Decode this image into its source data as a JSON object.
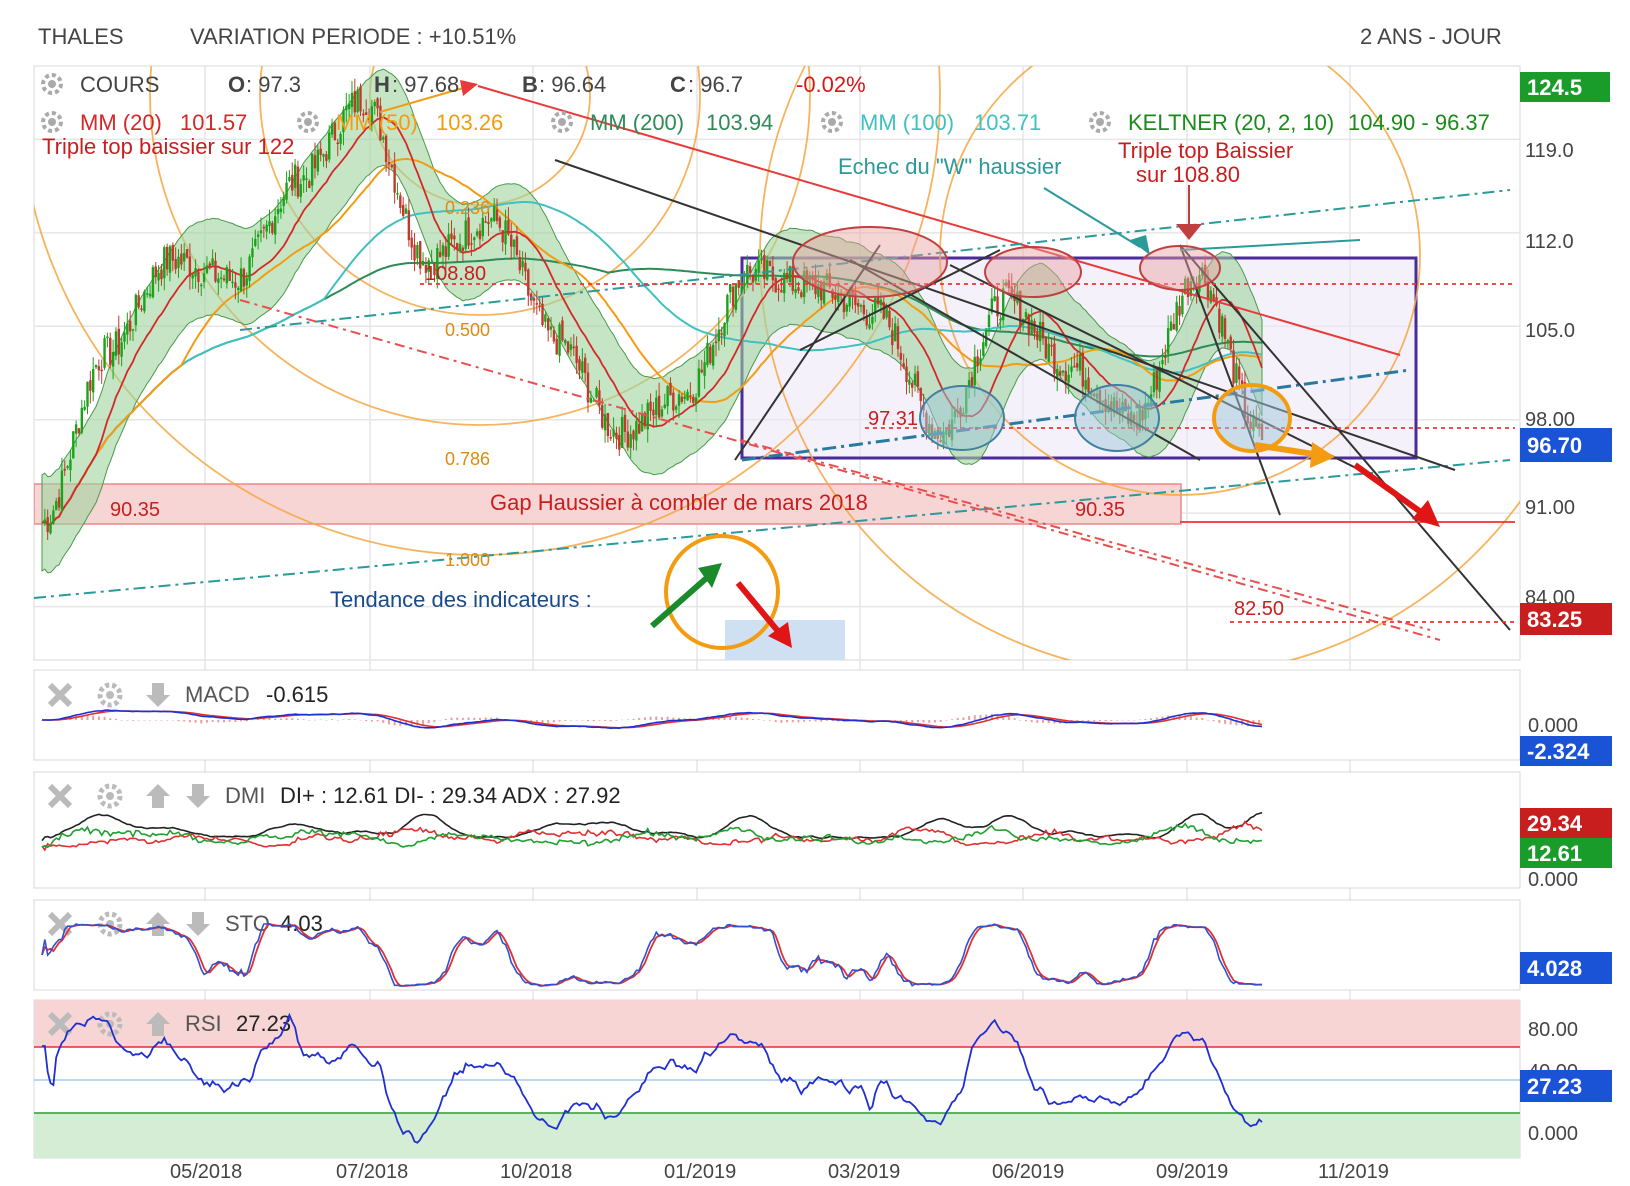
{
  "header": {
    "ticker": "THALES",
    "variation": "VARIATION PERIODE : +10.51%",
    "period": "2 ANS - JOUR"
  },
  "legend": {
    "cours": "COURS",
    "o_label": "O",
    "o_value": ": 97.3",
    "h_label": "H",
    "h_value": ": 97.68",
    "b_label": "B",
    "b_value": ": 96.64",
    "c_label": "C",
    "c_value": ": 96.7",
    "change": "-0.02%",
    "mm20": "MM (20)",
    "mm20_value": "101.57",
    "mm50": "MM (50)",
    "mm50_value": "103.26",
    "mm200": "MM (200)",
    "mm200_value": "103.94",
    "mm100": "MM (100)",
    "mm100_value": "103.71",
    "keltner": "KELTNER (20, 2, 10)",
    "keltner_value": "104.90 - 96.37"
  },
  "annotations": {
    "triple_top_1": "Triple top baissier  sur 122",
    "echec_w": "Echec du \"W\" haussier",
    "triple_top_2a": "Triple top Baissier",
    "triple_top_2b": "sur 108.80",
    "gap": "Gap Haussier à combler de mars 2018",
    "tendance": "Tendance des indicateurs :",
    "level_108": "108.80",
    "level_9731": "97.31",
    "level_9035_a": "90.35",
    "level_9035_b": "90.35",
    "level_8250": "82.50",
    "fib_0236": "0.236",
    "fib_0500": "0.500",
    "fib_0786": "0.786",
    "fib_1000": "1.000"
  },
  "price_axis": {
    "ticks": [
      "119.0",
      "112.0",
      "105.0",
      "98.00",
      "91.00",
      "84.00"
    ],
    "badge_top": "124.5",
    "badge_current": "96.70",
    "badge_target": "83.25"
  },
  "time_axis": [
    "05/2018",
    "07/2018",
    "10/2018",
    "01/2019",
    "03/2019",
    "06/2019",
    "09/2019",
    "11/2019"
  ],
  "indicators": {
    "macd": {
      "name": "MACD",
      "value": "-0.615",
      "axis_zero": "0.000",
      "badge": "-2.324"
    },
    "dmi": {
      "name": "DMI",
      "value": "DI+ : 12.61 DI- : 29.34 ADX : 27.92",
      "badge_minus": "29.34",
      "badge_plus": "12.61",
      "axis_zero": "0.000"
    },
    "sto": {
      "name": "STO",
      "value": "4.03",
      "badge": "4.028"
    },
    "rsi": {
      "name": "RSI",
      "value": "27.23",
      "axis_80": "80.00",
      "axis_40": "40.00",
      "badge": "27.23",
      "axis_zero": "0.000"
    }
  },
  "colors": {
    "up": "#1aa31a",
    "down": "#c0392b",
    "mm20": "#d62728",
    "mm50": "#f39c12",
    "mm200": "#2e8b57",
    "mm100": "#40c0c0",
    "keltner_fill": "#9fd39f",
    "box": "#4b2a9a",
    "badge_green": "#1a9c2a",
    "badge_blue": "#1a53d6",
    "badge_red": "#c81e1e"
  },
  "chart_data": {
    "type": "line",
    "title": "THALES",
    "x_range": [
      "2018-03",
      "2019-12"
    ],
    "y_range": [
      80,
      124.5
    ],
    "approx_close": [
      {
        "date": "2018-03",
        "value": 90.3
      },
      {
        "date": "2018-04",
        "value": 103
      },
      {
        "date": "2018-05",
        "value": 110
      },
      {
        "date": "2018-06",
        "value": 108.5
      },
      {
        "date": "2018-07",
        "value": 116
      },
      {
        "date": "2018-08",
        "value": 122
      },
      {
        "date": "2018-09",
        "value": 110
      },
      {
        "date": "2018-10",
        "value": 113
      },
      {
        "date": "2018-11",
        "value": 104
      },
      {
        "date": "2018-12",
        "value": 97
      },
      {
        "date": "2019-01",
        "value": 100
      },
      {
        "date": "2019-02",
        "value": 109
      },
      {
        "date": "2019-03",
        "value": 108
      },
      {
        "date": "2019-04",
        "value": 106
      },
      {
        "date": "2019-05",
        "value": 97
      },
      {
        "date": "2019-06",
        "value": 107
      },
      {
        "date": "2019-07",
        "value": 102
      },
      {
        "date": "2019-08",
        "value": 98
      },
      {
        "date": "2019-09",
        "value": 109
      },
      {
        "date": "2019-10",
        "value": 96.7
      }
    ]
  }
}
